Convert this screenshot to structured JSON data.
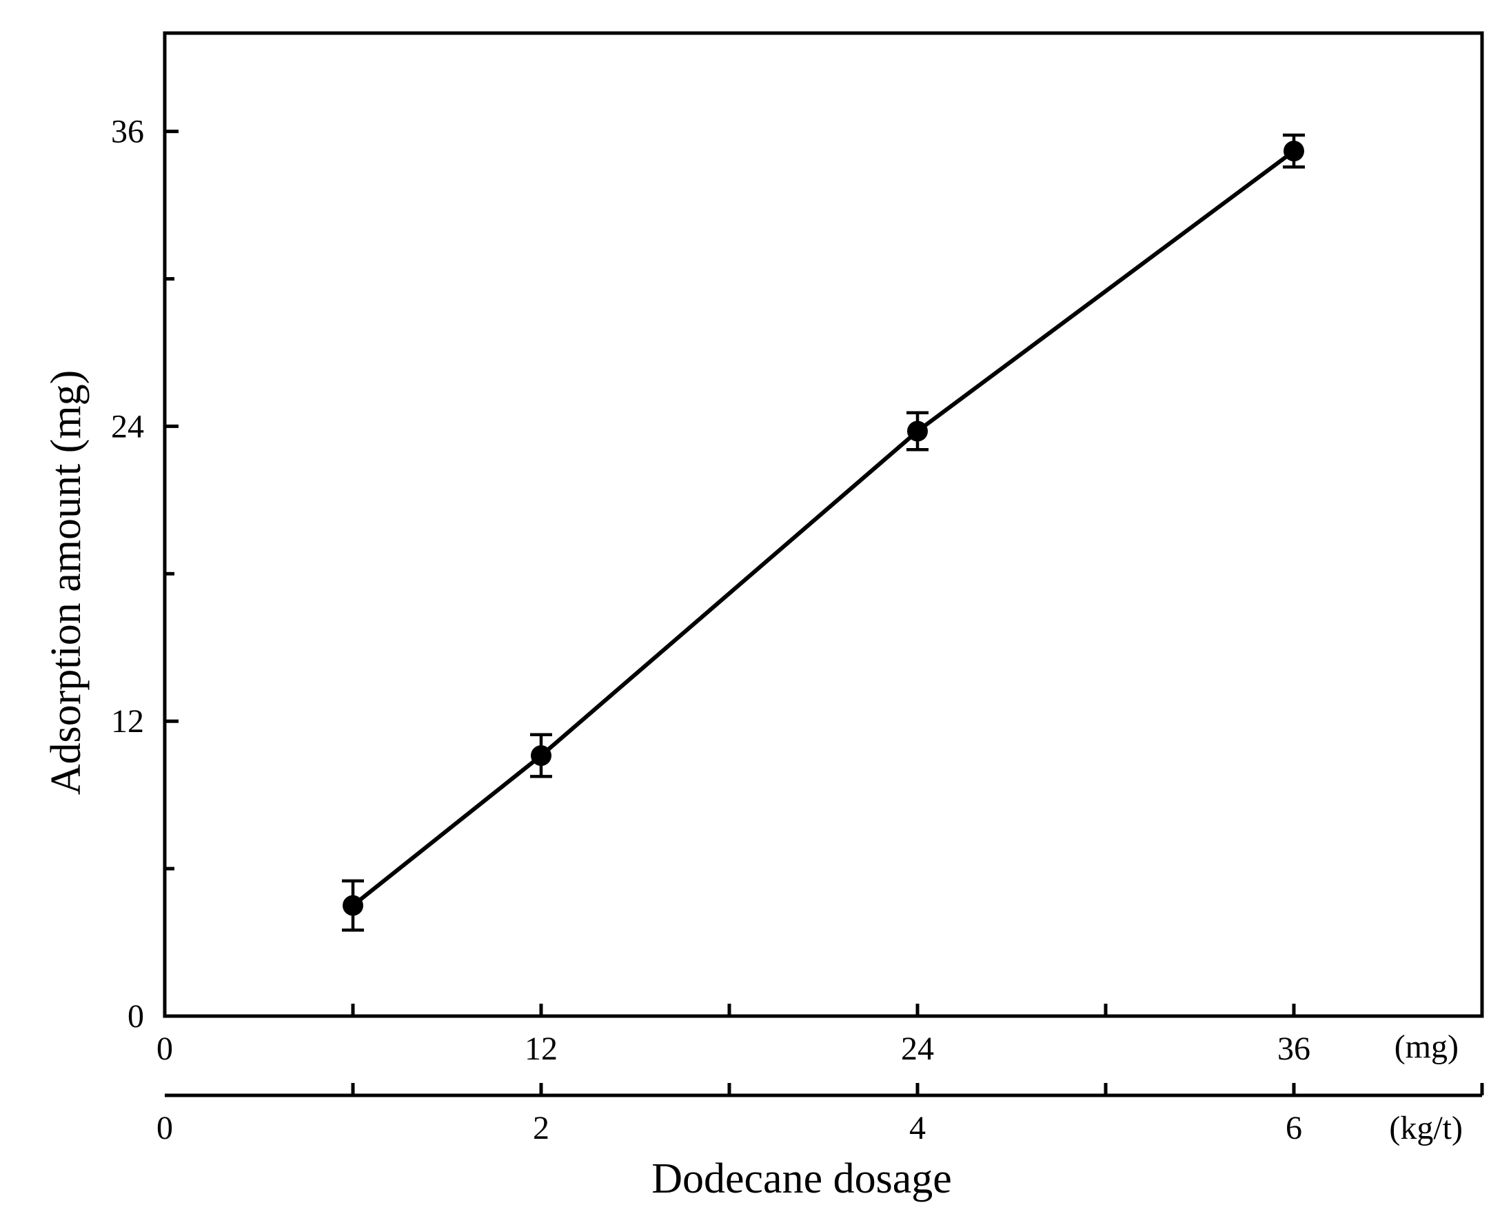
{
  "chart_data": {
    "type": "line",
    "xlabel": "Dodecane dosage",
    "ylabel": "Adsorption amount (mg)",
    "x_axes": [
      {
        "unit": "(mg)",
        "ticks": [
          0,
          12,
          24,
          36
        ],
        "range": [
          0,
          42
        ]
      },
      {
        "unit": "(kg/t)",
        "ticks": [
          0,
          2,
          4,
          6
        ],
        "range": [
          0,
          7
        ]
      }
    ],
    "xlim": [
      0,
      42
    ],
    "ylim": [
      0,
      40
    ],
    "yticks": [
      0,
      12,
      24,
      36
    ],
    "series": [
      {
        "x": [
          6,
          12,
          24,
          36
        ],
        "y": [
          4.5,
          10.6,
          23.8,
          35.2
        ],
        "yerr": [
          1.0,
          0.85,
          0.75,
          0.65
        ]
      }
    ],
    "colors": {
      "line": "#000000",
      "marker": "#000000"
    }
  }
}
